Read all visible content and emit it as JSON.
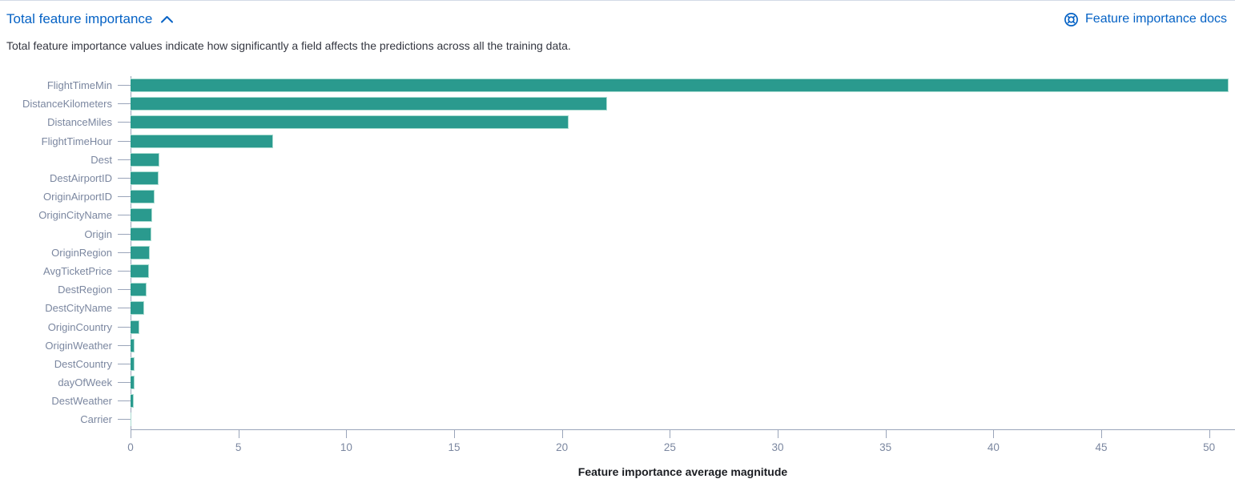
{
  "colors": {
    "link_blue": "#0562c5",
    "bar_fill": "#2a9a8e",
    "bar_border": "#aadcd1",
    "axis_line": "#9aa5ba",
    "axis_label": "#7b87a0",
    "axis_title": "#1a1c21",
    "description_text": "#343741",
    "panel_border": "#d3dae6"
  },
  "header": {
    "title": "Total feature importance",
    "collapse_icon": "chevron-up-icon",
    "docs_link": {
      "label": "Feature importance docs",
      "icon": "lifebuoy-icon"
    }
  },
  "description": "Total feature importance values indicate how significantly a field affects the predictions across all the training data.",
  "chart_data": {
    "type": "bar",
    "orientation": "horizontal",
    "title": "",
    "xlabel": "Feature importance average magnitude",
    "ylabel": "",
    "categories": [
      "FlightTimeMin",
      "DistanceKilometers",
      "DistanceMiles",
      "FlightTimeHour",
      "Dest",
      "DestAirportID",
      "OriginAirportID",
      "OriginCityName",
      "Origin",
      "OriginRegion",
      "AvgTicketPrice",
      "DestRegion",
      "DestCityName",
      "OriginCountry",
      "OriginWeather",
      "DestCountry",
      "dayOfWeek",
      "DestWeather",
      "Carrier"
    ],
    "values": [
      50.9,
      22.1,
      20.3,
      6.6,
      1.35,
      1.3,
      1.1,
      1.0,
      0.97,
      0.88,
      0.85,
      0.73,
      0.63,
      0.41,
      0.2,
      0.18,
      0.17,
      0.14,
      0.05
    ],
    "x_ticks": [
      0,
      5,
      10,
      15,
      20,
      25,
      30,
      35,
      40,
      45,
      50
    ],
    "xlim": [
      0,
      51.2
    ],
    "grid": false,
    "legend": "none",
    "bar_color": "#2a9a8e"
  }
}
